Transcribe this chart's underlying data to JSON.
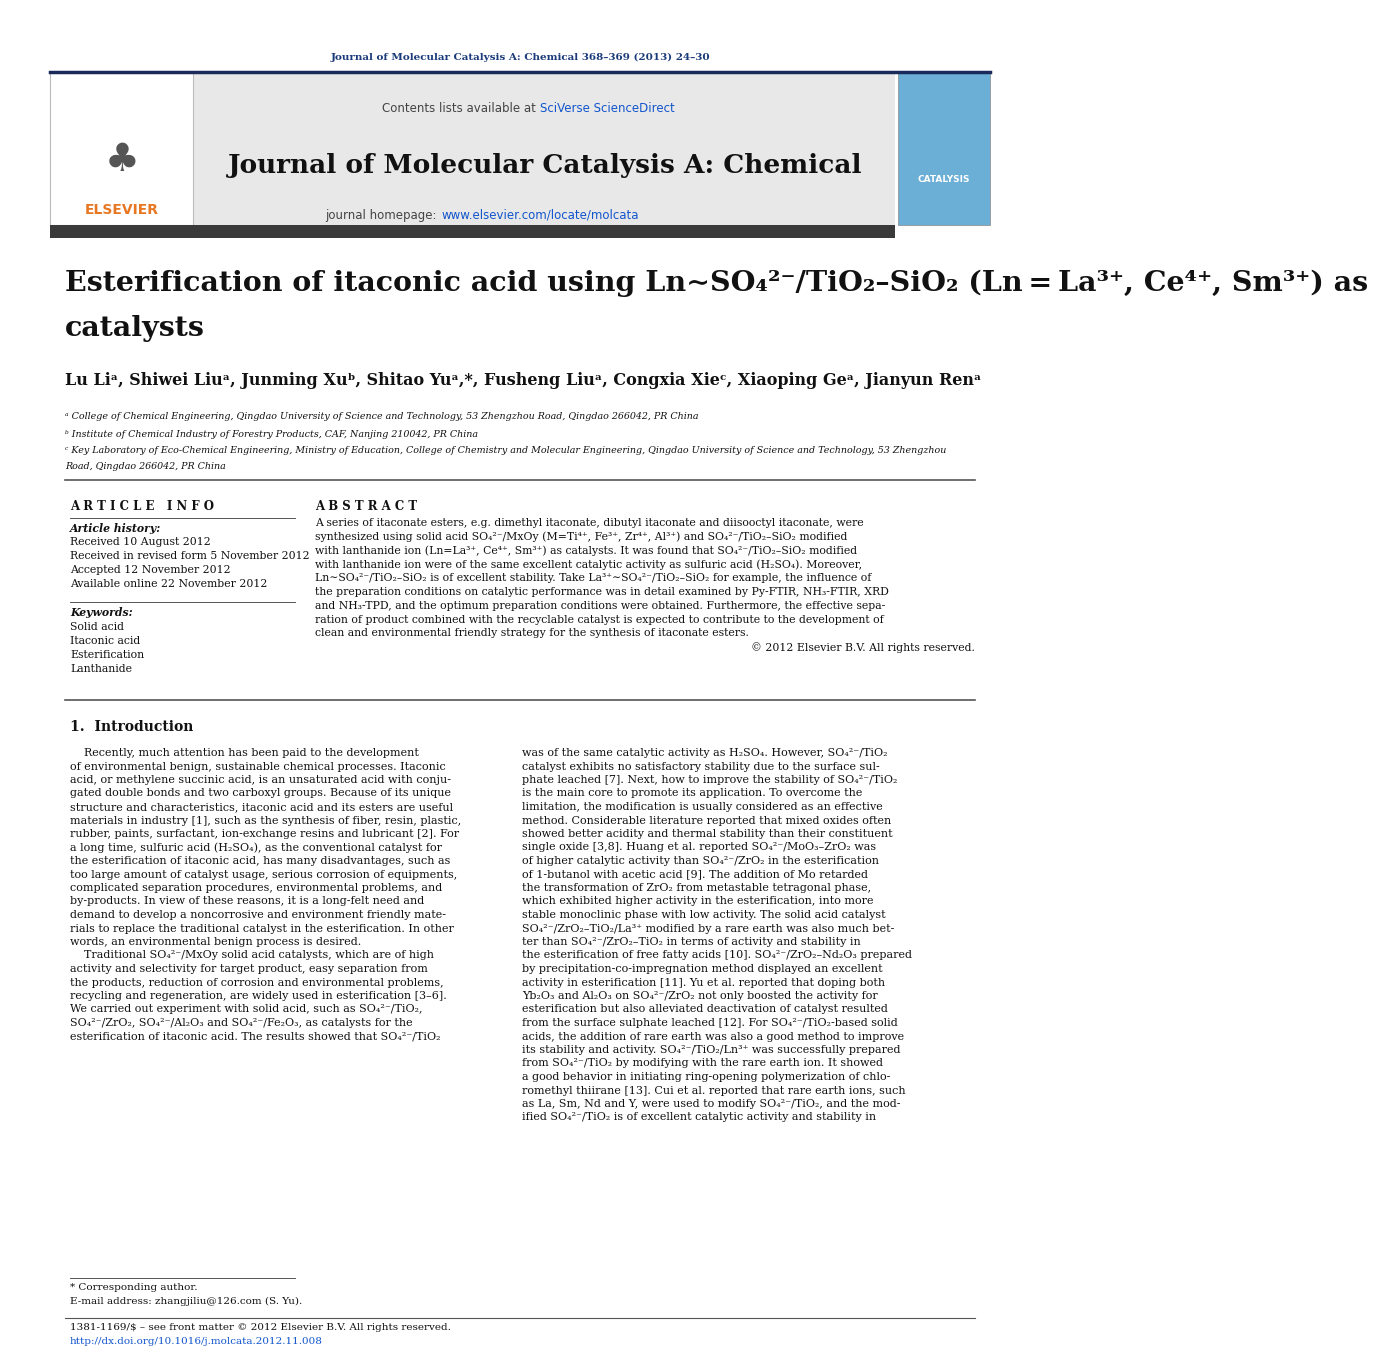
{
  "page_width": 10.21,
  "page_height": 13.51,
  "bg_color": "#ffffff",
  "header_journal_ref": "Journal of Molecular Catalysis A: Chemical 368–369 (2013) 24–30",
  "header_ref_color": "#1a3a7a",
  "journal_name": "Journal of Molecular Catalysis A: Chemical",
  "contents_text": "Contents lists available at ",
  "sciverse_text": "SciVerse ScienceDirect",
  "homepage_text": "journal homepage: ",
  "homepage_url": "www.elsevier.com/locate/molcata",
  "homepage_url_color": "#1155cc",
  "sciverse_color": "#1155cc",
  "header_bg": "#e8e8e8",
  "dark_bar_color": "#3a3a3a",
  "article_title_line1": "Esterification of itaconic acid using Ln∼SO₄²⁻/TiO₂–SiO₂ (Ln = La³⁺, Ce⁴⁺, Sm³⁺) as",
  "article_title_line2": "catalysts",
  "authors": "Lu Liᵃ, Shiwei Liuᵃ, Junming Xuᵇ, Shitao Yuᵃ,*, Fusheng Liuᵃ, Congxia Xieᶜ, Xiaoping Geᵃ, Jianyun Renᵃ",
  "affil_a": "ᵃ College of Chemical Engineering, Qingdao University of Science and Technology, 53 Zhengzhou Road, Qingdao 266042, PR China",
  "affil_b": "ᵇ Institute of Chemical Industry of Forestry Products, CAF, Nanjing 210042, PR China",
  "affil_c1": "ᶜ Key Laboratory of Eco-Chemical Engineering, Ministry of Education, College of Chemistry and Molecular Engineering, Qingdao University of Science and Technology, 53 Zhengzhou",
  "affil_c2": "Road, Qingdao 266042, PR China",
  "article_info_title": "A R T I C L E   I N F O",
  "article_history_title": "Article history:",
  "received": "Received 10 August 2012",
  "revised": "Received in revised form 5 November 2012",
  "accepted": "Accepted 12 November 2012",
  "available": "Available online 22 November 2012",
  "keywords_title": "Keywords:",
  "keywords": [
    "Solid acid",
    "Itaconic acid",
    "Esterification",
    "Lanthanide"
  ],
  "abstract_title": "A B S T R A C T",
  "abstract_lines": [
    "A series of itaconate esters, e.g. dimethyl itaconate, dibutyl itaconate and diisooctyl itaconate, were",
    "synthesized using solid acid SO₄²⁻/MxOy (M=Ti⁴⁺, Fe³⁺, Zr⁴⁺, Al³⁺) and SO₄²⁻/TiO₂–SiO₂ modified",
    "with lanthanide ion (Ln=La³⁺, Ce⁴⁺, Sm³⁺) as catalysts. It was found that SO₄²⁻/TiO₂–SiO₂ modified",
    "with lanthanide ion were of the same excellent catalytic activity as sulfuric acid (H₂SO₄). Moreover,",
    "Ln∼SO₄²⁻/TiO₂–SiO₂ is of excellent stability. Take La³⁺∼SO₄²⁻/TiO₂–SiO₂ for example, the influence of",
    "the preparation conditions on catalytic performance was in detail examined by Py-FTIR, NH₃-FTIR, XRD",
    "and NH₃-TPD, and the optimum preparation conditions were obtained. Furthermore, the effective sepa-",
    "ration of product combined with the recyclable catalyst is expected to contribute to the development of",
    "clean and environmental friendly strategy for the synthesis of itaconate esters."
  ],
  "copyright": "© 2012 Elsevier B.V. All rights reserved.",
  "intro_title": "1.  Introduction",
  "col1_lines": [
    "    Recently, much attention has been paid to the development",
    "of environmental benign, sustainable chemical processes. Itaconic",
    "acid, or methylene succinic acid, is an unsaturated acid with conju-",
    "gated double bonds and two carboxyl groups. Because of its unique",
    "structure and characteristics, itaconic acid and its esters are useful",
    "materials in industry [1], such as the synthesis of fiber, resin, plastic,",
    "rubber, paints, surfactant, ion-exchange resins and lubricant [2]. For",
    "a long time, sulfuric acid (H₂SO₄), as the conventional catalyst for",
    "the esterification of itaconic acid, has many disadvantages, such as",
    "too large amount of catalyst usage, serious corrosion of equipments,",
    "complicated separation procedures, environmental problems, and",
    "by-products. In view of these reasons, it is a long-felt need and",
    "demand to develop a noncorrosive and environment friendly mate-",
    "rials to replace the traditional catalyst in the esterification. In other",
    "words, an environmental benign process is desired.",
    "    Traditional SO₄²⁻/MxOy solid acid catalysts, which are of high",
    "activity and selectivity for target product, easy separation from",
    "the products, reduction of corrosion and environmental problems,",
    "recycling and regeneration, are widely used in esterification [3–6].",
    "We carried out experiment with solid acid, such as SO₄²⁻/TiO₂,",
    "SO₄²⁻/ZrO₂, SO₄²⁻/Al₂O₃ and SO₄²⁻/Fe₂O₃, as catalysts for the",
    "esterification of itaconic acid. The results showed that SO₄²⁻/TiO₂"
  ],
  "col2_lines": [
    "was of the same catalytic activity as H₂SO₄. However, SO₄²⁻/TiO₂",
    "catalyst exhibits no satisfactory stability due to the surface sul-",
    "phate leached [7]. Next, how to improve the stability of SO₄²⁻/TiO₂",
    "is the main core to promote its application. To overcome the",
    "limitation, the modification is usually considered as an effective",
    "method. Considerable literature reported that mixed oxides often",
    "showed better acidity and thermal stability than their constituent",
    "single oxide [3,8]. Huang et al. reported SO₄²⁻/MoO₃–ZrO₂ was",
    "of higher catalytic activity than SO₄²⁻/ZrO₂ in the esterification",
    "of 1-butanol with acetic acid [9]. The addition of Mo retarded",
    "the transformation of ZrO₂ from metastable tetragonal phase,",
    "which exhibited higher activity in the esterification, into more",
    "stable monoclinic phase with low activity. The solid acid catalyst",
    "SO₄²⁻/ZrO₂–TiO₂/La³⁺ modified by a rare earth was also much bet-",
    "ter than SO₄²⁻/ZrO₂–TiO₂ in terms of activity and stability in",
    "the esterification of free fatty acids [10]. SO₄²⁻/ZrO₂–Nd₂O₃ prepared",
    "by precipitation-co-impregnation method displayed an excellent",
    "activity in esterification [11]. Yu et al. reported that doping both",
    "Yb₂O₃ and Al₂O₃ on SO₄²⁻/ZrO₂ not only boosted the activity for",
    "esterification but also alleviated deactivation of catalyst resulted",
    "from the surface sulphate leached [12]. For SO₄²⁻/TiO₂-based solid",
    "acids, the addition of rare earth was also a good method to improve",
    "its stability and activity. SO₄²⁻/TiO₂/Ln³⁺ was successfully prepared",
    "from SO₄²⁻/TiO₂ by modifying with the rare earth ion. It showed",
    "a good behavior in initiating ring-opening polymerization of chlo-",
    "romethyl thiirane [13]. Cui et al. reported that rare earth ions, such",
    "as La, Sm, Nd and Y, were used to modify SO₄²⁻/TiO₂, and the mod-",
    "ified SO₄²⁻/TiO₂ is of excellent catalytic activity and stability in"
  ],
  "footnote_corresponding": "* Corresponding author.",
  "footnote_email": "E-mail address: zhangjiliu@126.com (S. Yu).",
  "footnote_issn": "1381-1169/$ – see front matter © 2012 Elsevier B.V. All rights reserved.",
  "footnote_doi": "http://dx.doi.org/10.1016/j.molcata.2012.11.008",
  "doi_color": "#1155cc"
}
